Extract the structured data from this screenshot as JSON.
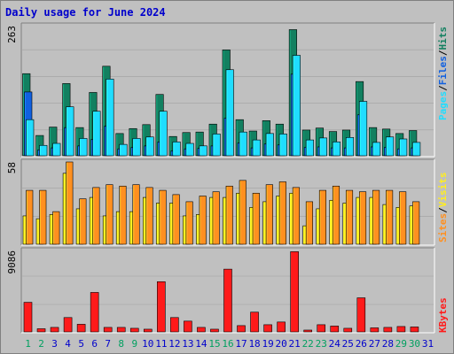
{
  "title": "Daily usage for June 2024",
  "colors": {
    "background": "#c0c0c0",
    "plot_bg": "#c0c0c0",
    "grid": "#a0a0a0",
    "border_dark": "#808080",
    "border_light": "#ffffff",
    "hits": "#128060",
    "files": "#1060e0",
    "pages": "#20ddff",
    "visits": "#ff9020",
    "sites": "#ffee20",
    "kbytes": "#ff1a1a",
    "title": "#0000cc",
    "weekday_label": "#0000cc",
    "weekend_label": "#00a060"
  },
  "chart_data": [
    {
      "type": "bar",
      "panel": "hits-files-pages",
      "categories": [
        "1",
        "2",
        "3",
        "4",
        "5",
        "6",
        "7",
        "8",
        "9",
        "10",
        "11",
        "12",
        "13",
        "14",
        "15",
        "16",
        "17",
        "18",
        "19",
        "20",
        "21",
        "22",
        "23",
        "24",
        "25",
        "26",
        "27",
        "28",
        "29",
        "30",
        "31"
      ],
      "weekend_days": [
        1,
        2,
        8,
        9,
        15,
        16,
        22,
        23,
        29,
        30
      ],
      "ymax_label": "263",
      "ylim": [
        0,
        263
      ],
      "series": [
        {
          "name": "Hits",
          "values": [
            166,
            41,
            58,
            146,
            57,
            128,
            181,
            45,
            55,
            63,
            124,
            39,
            47,
            48,
            64,
            214,
            73,
            50,
            71,
            64,
            255,
            52,
            56,
            49,
            52,
            150,
            57,
            54,
            45,
            51,
            0
          ]
        },
        {
          "name": "Files",
          "values": [
            129,
            12,
            16,
            57,
            20,
            33,
            60,
            14,
            17,
            20,
            28,
            10,
            14,
            15,
            20,
            76,
            26,
            16,
            24,
            22,
            165,
            17,
            18,
            16,
            16,
            83,
            18,
            17,
            14,
            16,
            0
          ]
        },
        {
          "name": "Pages",
          "values": [
            73,
            21,
            25,
            99,
            35,
            90,
            155,
            23,
            35,
            38,
            90,
            28,
            25,
            20,
            44,
            174,
            48,
            32,
            45,
            44,
            203,
            32,
            36,
            28,
            37,
            110,
            27,
            38,
            34,
            27,
            0
          ]
        }
      ]
    },
    {
      "type": "bar",
      "panel": "visits-sites",
      "categories": [
        "1",
        "2",
        "3",
        "4",
        "5",
        "6",
        "7",
        "8",
        "9",
        "10",
        "11",
        "12",
        "13",
        "14",
        "15",
        "16",
        "17",
        "18",
        "19",
        "20",
        "21",
        "22",
        "23",
        "24",
        "25",
        "26",
        "27",
        "28",
        "29",
        "30",
        "31"
      ],
      "ymax_label": "58",
      "ylim": [
        0,
        58
      ],
      "series": [
        {
          "name": "Visits",
          "values": [
            38,
            38,
            23,
            58,
            32,
            40,
            42,
            41,
            42,
            40,
            38,
            35,
            30,
            34,
            37,
            41,
            45,
            36,
            42,
            44,
            40,
            30,
            38,
            41,
            38,
            37,
            38,
            38,
            37,
            30,
            0
          ]
        },
        {
          "name": "Sites",
          "values": [
            20,
            18,
            21,
            50,
            25,
            33,
            20,
            23,
            23,
            33,
            29,
            29,
            20,
            21,
            33,
            33,
            36,
            26,
            30,
            34,
            36,
            13,
            25,
            31,
            29,
            33,
            33,
            28,
            26,
            27,
            0
          ]
        }
      ]
    },
    {
      "type": "bar",
      "panel": "kbytes",
      "ymax_label": "9086",
      "ylim": [
        0,
        9086
      ],
      "categories": [
        "1",
        "2",
        "3",
        "4",
        "5",
        "6",
        "7",
        "8",
        "9",
        "10",
        "11",
        "12",
        "13",
        "14",
        "15",
        "16",
        "17",
        "18",
        "19",
        "20",
        "21",
        "22",
        "23",
        "24",
        "25",
        "26",
        "27",
        "28",
        "29",
        "30",
        "31"
      ],
      "series": [
        {
          "name": "KBytes",
          "values": [
            3300,
            350,
            500,
            1600,
            850,
            4400,
            500,
            500,
            400,
            300,
            5600,
            1600,
            1200,
            500,
            300,
            7000,
            700,
            2200,
            800,
            1100,
            8950,
            200,
            800,
            650,
            400,
            3800,
            450,
            500,
            600,
            550,
            0
          ]
        }
      ]
    }
  ],
  "legends": {
    "panel1": [
      "Pages",
      "/",
      "Files",
      "/",
      "Hits"
    ],
    "panel2": [
      "Sites",
      "/",
      "Visits"
    ],
    "panel3": [
      "KBytes"
    ]
  }
}
